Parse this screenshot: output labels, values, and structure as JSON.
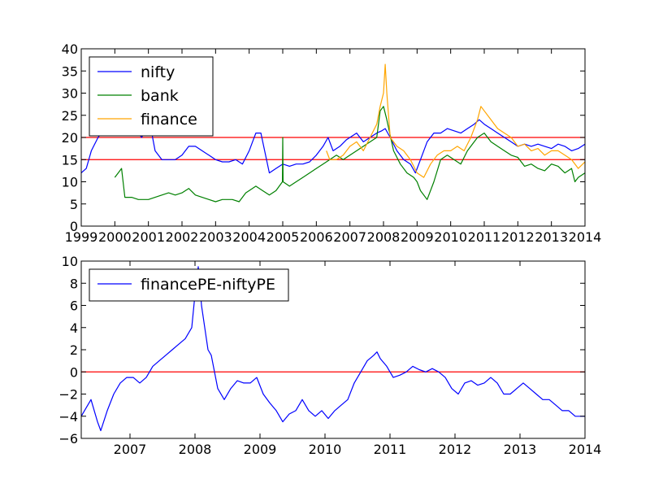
{
  "chart_data": [
    {
      "type": "line",
      "title": "",
      "xlabel": "",
      "ylabel": "",
      "x_axis": "year",
      "xlim": [
        1999,
        2014
      ],
      "ylim": [
        0,
        40
      ],
      "xticks": [
        "1999",
        "2000",
        "2001",
        "2002",
        "2003",
        "2004",
        "2005",
        "2006",
        "2007",
        "2008",
        "2009",
        "2010",
        "2011",
        "2012",
        "2013",
        "2014"
      ],
      "yticks": [
        "0",
        "5",
        "10",
        "15",
        "20",
        "25",
        "30",
        "35",
        "40"
      ],
      "grid": false,
      "legend_position": "top-left",
      "reference_lines": [
        {
          "y": 20,
          "color": "#ff0000"
        },
        {
          "y": 15,
          "color": "#ff0000"
        }
      ],
      "series": [
        {
          "name": "nifty",
          "color": "#0000ff",
          "x": [
            1999.0,
            1999.15,
            1999.3,
            1999.5,
            1999.7,
            1999.85,
            2000.0,
            2000.1,
            2000.3,
            2000.5,
            2000.6,
            2000.8,
            2001.0,
            2001.1,
            2001.2,
            2001.4,
            2001.6,
            2001.8,
            2002.0,
            2002.2,
            2002.4,
            2002.6,
            2002.8,
            2003.0,
            2003.2,
            2003.4,
            2003.6,
            2003.8,
            2004.0,
            2004.1,
            2004.2,
            2004.35,
            2004.6,
            2004.8,
            2005.0,
            2005.2,
            2005.4,
            2005.6,
            2005.8,
            2006.0,
            2006.2,
            2006.35,
            2006.5,
            2006.7,
            2006.9,
            2007.0,
            2007.2,
            2007.4,
            2007.6,
            2007.8,
            2007.95,
            2008.05,
            2008.2,
            2008.4,
            2008.6,
            2008.8,
            2008.95,
            2009.1,
            2009.3,
            2009.5,
            2009.7,
            2009.9,
            2010.1,
            2010.3,
            2010.5,
            2010.7,
            2010.85,
            2011.0,
            2011.2,
            2011.4,
            2011.6,
            2011.8,
            2012.0,
            2012.2,
            2012.4,
            2012.6,
            2012.8,
            2013.0,
            2013.2,
            2013.4,
            2013.6,
            2013.8,
            2014.0
          ],
          "y": [
            12,
            13,
            17,
            20,
            22,
            23,
            23,
            25,
            24,
            24,
            22,
            20,
            23,
            21,
            17,
            15,
            15,
            15,
            16,
            18,
            18,
            17,
            16,
            15,
            14.5,
            14.5,
            15,
            14,
            17,
            19,
            21,
            21,
            12,
            13,
            14,
            13.5,
            14,
            14,
            14.5,
            16,
            18,
            20,
            17,
            18,
            19.5,
            20,
            21,
            19,
            20,
            21,
            21.5,
            22,
            20,
            17,
            15,
            14,
            12,
            15,
            19,
            21,
            21,
            22,
            21.5,
            21,
            22,
            23,
            24,
            23,
            22,
            21,
            20,
            19,
            18,
            18.5,
            18,
            18.5,
            18,
            17.5,
            18.5,
            18,
            17,
            17.5,
            18.5
          ]
        },
        {
          "name": "bank",
          "color": "#008000",
          "x": [
            2000.0,
            2000.1,
            2000.2,
            2000.3,
            2000.5,
            2000.7,
            2001.0,
            2001.2,
            2001.4,
            2001.6,
            2001.8,
            2002.0,
            2002.2,
            2002.4,
            2002.6,
            2002.8,
            2003.0,
            2003.2,
            2003.3,
            2003.5,
            2003.7,
            2003.9,
            2004.0,
            2004.2,
            2004.4,
            2004.6,
            2004.8,
            2004.99,
            2005.0,
            2005.01,
            2005.2,
            2005.4,
            2005.6,
            2005.8,
            2006.0,
            2006.2,
            2006.4,
            2006.6,
            2006.8,
            2007.0,
            2007.2,
            2007.4,
            2007.6,
            2007.8,
            2007.9,
            2008.0,
            2008.1,
            2008.3,
            2008.5,
            2008.7,
            2008.9,
            2009.0,
            2009.1,
            2009.3,
            2009.5,
            2009.7,
            2009.9,
            2010.1,
            2010.3,
            2010.5,
            2010.7,
            2010.8,
            2011.0,
            2011.2,
            2011.4,
            2011.6,
            2011.8,
            2012.0,
            2012.2,
            2012.4,
            2012.6,
            2012.8,
            2013.0,
            2013.2,
            2013.4,
            2013.6,
            2013.7,
            2013.8,
            2014.0
          ],
          "y": [
            11,
            12,
            13,
            6.5,
            6.5,
            6,
            6,
            6.5,
            7,
            7.5,
            7,
            7.5,
            8.5,
            7,
            6.5,
            6,
            5.5,
            6,
            6,
            6,
            5.5,
            7.5,
            8,
            9,
            8,
            7,
            8,
            10,
            20,
            10,
            9,
            10,
            11,
            12,
            13,
            14,
            15,
            16,
            15,
            16,
            17,
            18,
            19,
            20,
            26,
            27,
            24,
            17,
            14,
            12,
            11,
            10,
            8,
            6,
            10,
            15,
            16,
            15,
            14,
            17,
            19,
            20,
            21,
            19,
            18,
            17,
            16,
            15.5,
            13.5,
            14,
            13,
            12.5,
            14,
            13.5,
            12,
            13,
            10,
            11,
            12
          ]
        },
        {
          "name": "finance",
          "color": "#ffa500",
          "x": [
            2006.3,
            2006.4,
            2006.6,
            2006.8,
            2007.0,
            2007.2,
            2007.4,
            2007.6,
            2007.8,
            2007.9,
            2008.0,
            2008.05,
            2008.1,
            2008.2,
            2008.4,
            2008.6,
            2008.8,
            2009.0,
            2009.2,
            2009.4,
            2009.6,
            2009.8,
            2010.0,
            2010.2,
            2010.4,
            2010.6,
            2010.8,
            2010.9,
            2011.0,
            2011.2,
            2011.4,
            2011.6,
            2011.8,
            2012.0,
            2012.2,
            2012.4,
            2012.6,
            2012.8,
            2013.0,
            2013.2,
            2013.4,
            2013.6,
            2013.8,
            2014.0
          ],
          "y": [
            17,
            15,
            15,
            16,
            18,
            19,
            17,
            20,
            23,
            27,
            30,
            36.5,
            30,
            20,
            18,
            17,
            15,
            12,
            11,
            14,
            16,
            17,
            17,
            18,
            17,
            20,
            24,
            27,
            26,
            24,
            22,
            21,
            20,
            18,
            18.5,
            17,
            17.5,
            16,
            17,
            17,
            16,
            15,
            13,
            14.5
          ]
        }
      ]
    },
    {
      "type": "line",
      "title": "",
      "xlabel": "",
      "ylabel": "",
      "x_axis": "year",
      "xlim": [
        2006.25,
        2014
      ],
      "ylim": [
        -6,
        10
      ],
      "xticks": [
        "2007",
        "2008",
        "2009",
        "2010",
        "2011",
        "2012",
        "2013",
        "2014"
      ],
      "yticks": [
        "−6",
        "−4",
        "−2",
        "0",
        "2",
        "4",
        "6",
        "8",
        "10"
      ],
      "grid": false,
      "legend_position": "top-left",
      "reference_lines": [
        {
          "y": 0,
          "color": "#ff0000"
        }
      ],
      "series": [
        {
          "name": "financePE-niftyPE",
          "color": "#0000ff",
          "x": [
            2006.25,
            2006.3,
            2006.4,
            2006.5,
            2006.55,
            2006.65,
            2006.75,
            2006.85,
            2006.95,
            2007.05,
            2007.15,
            2007.25,
            2007.35,
            2007.45,
            2007.55,
            2007.65,
            2007.75,
            2007.85,
            2007.95,
            2008.0,
            2008.05,
            2008.1,
            2008.15,
            2008.2,
            2008.25,
            2008.3,
            2008.35,
            2008.45,
            2008.55,
            2008.65,
            2008.75,
            2008.85,
            2008.95,
            2009.05,
            2009.15,
            2009.25,
            2009.35,
            2009.45,
            2009.55,
            2009.65,
            2009.75,
            2009.85,
            2009.95,
            2010.05,
            2010.15,
            2010.25,
            2010.35,
            2010.45,
            2010.55,
            2010.65,
            2010.75,
            2010.8,
            2010.85,
            2010.95,
            2011.05,
            2011.15,
            2011.25,
            2011.35,
            2011.45,
            2011.55,
            2011.65,
            2011.75,
            2011.85,
            2011.95,
            2012.05,
            2012.15,
            2012.25,
            2012.35,
            2012.45,
            2012.55,
            2012.65,
            2012.75,
            2012.85,
            2012.95,
            2013.05,
            2013.15,
            2013.25,
            2013.35,
            2013.45,
            2013.55,
            2013.65,
            2013.75,
            2013.85,
            2013.95,
            2014.0
          ],
          "y": [
            -4,
            -3.5,
            -2.5,
            -4.5,
            -5.3,
            -3.5,
            -2,
            -1,
            -0.5,
            -0.5,
            -1,
            -0.5,
            0.5,
            1,
            1.5,
            2,
            2.5,
            3,
            4,
            7,
            9.5,
            6,
            4,
            2,
            1.5,
            0,
            -1.5,
            -2.5,
            -1.5,
            -0.8,
            -1,
            -1,
            -0.5,
            -2,
            -2.8,
            -3.5,
            -4.5,
            -3.8,
            -3.5,
            -2.5,
            -3.5,
            -4,
            -3.5,
            -4.2,
            -3.5,
            -3,
            -2.5,
            -1,
            0,
            1,
            1.5,
            1.8,
            1.2,
            0.5,
            -0.5,
            -0.3,
            0,
            0.5,
            0.2,
            0,
            0.3,
            0,
            -0.5,
            -1.5,
            -2,
            -1,
            -0.8,
            -1.2,
            -1,
            -0.5,
            -1,
            -2,
            -2,
            -1.5,
            -1,
            -1.5,
            -2,
            -2.5,
            -2.5,
            -3,
            -3.5,
            -3.5,
            -4,
            -4,
            -4
          ]
        }
      ]
    }
  ]
}
